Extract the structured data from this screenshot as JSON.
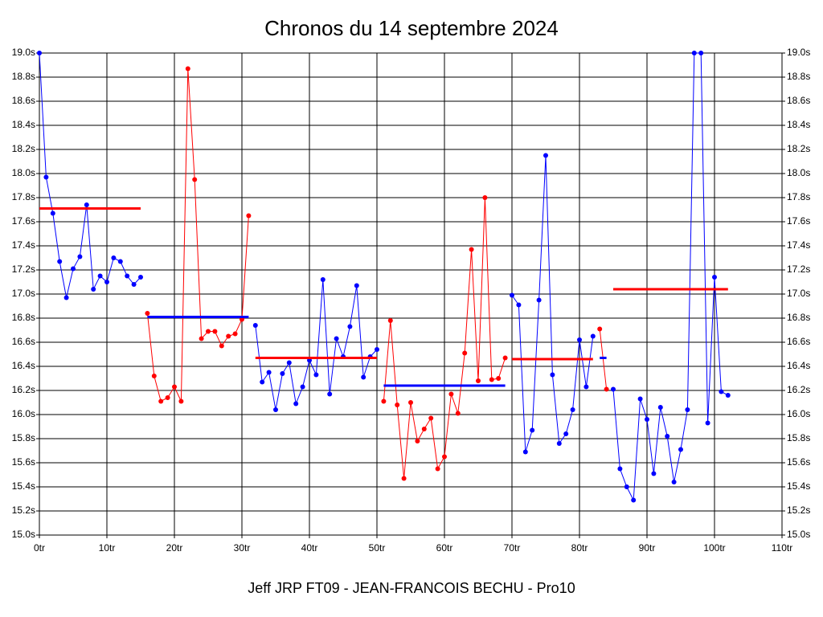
{
  "chart_data": {
    "type": "line",
    "title": "Chronos du 14 septembre 2024",
    "xlabel": "Jeff JRP FT09 - JEAN-FRANCOIS BECHU - Pro10",
    "xlim": [
      0,
      110
    ],
    "xticks": [
      {
        "value": 0,
        "label": "0tr"
      },
      {
        "value": 10,
        "label": "10tr"
      },
      {
        "value": 20,
        "label": "20tr"
      },
      {
        "value": 30,
        "label": "30tr"
      },
      {
        "value": 40,
        "label": "40tr"
      },
      {
        "value": 50,
        "label": "50tr"
      },
      {
        "value": 60,
        "label": "60tr"
      },
      {
        "value": 70,
        "label": "70tr"
      },
      {
        "value": 80,
        "label": "80tr"
      },
      {
        "value": 90,
        "label": "90tr"
      },
      {
        "value": 100,
        "label": "100tr"
      },
      {
        "value": 110,
        "label": "110tr"
      }
    ],
    "ylim": [
      15.0,
      19.0
    ],
    "yticks": [
      {
        "value": 15.0,
        "label": "15.0s"
      },
      {
        "value": 15.2,
        "label": "15.2s"
      },
      {
        "value": 15.4,
        "label": "15.4s"
      },
      {
        "value": 15.6,
        "label": "15.6s"
      },
      {
        "value": 15.8,
        "label": "15.8s"
      },
      {
        "value": 16.0,
        "label": "16.0s"
      },
      {
        "value": 16.2,
        "label": "16.2s"
      },
      {
        "value": 16.4,
        "label": "16.4s"
      },
      {
        "value": 16.6,
        "label": "16.6s"
      },
      {
        "value": 16.8,
        "label": "16.8s"
      },
      {
        "value": 17.0,
        "label": "17.0s"
      },
      {
        "value": 17.2,
        "label": "17.2s"
      },
      {
        "value": 17.4,
        "label": "17.4s"
      },
      {
        "value": 17.6,
        "label": "17.6s"
      },
      {
        "value": 17.8,
        "label": "17.8s"
      },
      {
        "value": 18.0,
        "label": "18.0s"
      },
      {
        "value": 18.2,
        "label": "18.2s"
      },
      {
        "value": 18.4,
        "label": "18.4s"
      },
      {
        "value": 18.6,
        "label": "18.6s"
      },
      {
        "value": 18.8,
        "label": "18.8s"
      },
      {
        "value": 19.0,
        "label": "19.0s"
      }
    ],
    "grid": true,
    "series": [
      {
        "color": "#0000ff",
        "mean": 17.71,
        "mean_color": "#ff0000",
        "x": [
          0,
          1,
          2,
          3,
          4,
          5,
          6,
          7,
          8,
          9,
          10,
          11,
          12,
          13,
          14,
          15
        ],
        "values": [
          19.0,
          17.97,
          17.67,
          17.27,
          16.97,
          17.21,
          17.31,
          17.74,
          17.04,
          17.15,
          17.1,
          17.3,
          17.27,
          17.15,
          17.08,
          17.14
        ]
      },
      {
        "color": "#ff0000",
        "mean": 16.81,
        "mean_color": "#0000ff",
        "x": [
          16,
          17,
          18,
          19,
          20,
          21,
          22,
          23,
          24,
          25,
          26,
          27,
          28,
          29,
          30,
          31
        ],
        "values": [
          16.84,
          16.32,
          16.11,
          16.14,
          16.23,
          16.11,
          18.87,
          17.95,
          16.63,
          16.69,
          16.69,
          16.57,
          16.65,
          16.67,
          16.79,
          17.65
        ]
      },
      {
        "color": "#0000ff",
        "mean": 16.47,
        "mean_color": "#ff0000",
        "x": [
          32,
          33,
          34,
          35,
          36,
          37,
          38,
          39,
          40,
          41,
          42,
          43,
          44,
          45,
          46,
          47,
          48,
          49,
          50
        ],
        "values": [
          16.74,
          16.27,
          16.35,
          16.04,
          16.34,
          16.43,
          16.09,
          16.23,
          16.45,
          16.33,
          17.12,
          16.17,
          16.63,
          16.48,
          16.73,
          17.07,
          16.31,
          16.48,
          16.54
        ]
      },
      {
        "color": "#ff0000",
        "mean": 16.24,
        "mean_color": "#0000ff",
        "x": [
          51,
          52,
          53,
          54,
          55,
          56,
          57,
          58,
          59,
          60,
          61,
          62,
          63,
          64,
          65,
          66,
          67,
          68,
          69
        ],
        "values": [
          16.11,
          16.78,
          16.08,
          15.47,
          16.1,
          15.78,
          15.88,
          15.97,
          15.55,
          15.65,
          16.17,
          16.01,
          16.51,
          17.37,
          16.28,
          17.8,
          16.29,
          16.3,
          16.47
        ]
      },
      {
        "color": "#0000ff",
        "mean": 16.46,
        "mean_color": "#ff0000",
        "x": [
          70,
          71,
          72,
          73,
          74,
          75,
          76,
          77,
          78,
          79,
          80,
          81,
          82
        ],
        "values": [
          16.99,
          16.91,
          15.69,
          15.87,
          16.95,
          18.15,
          16.33,
          15.76,
          15.84,
          16.04,
          16.62,
          16.23,
          16.65
        ]
      },
      {
        "color": "#ff0000",
        "mean": 16.47,
        "mean_color": "#0000ff",
        "x": [
          83,
          84
        ],
        "values": [
          16.71,
          16.21
        ]
      },
      {
        "color": "#0000ff",
        "mean": 17.04,
        "mean_color": "#ff0000",
        "x": [
          85,
          86,
          87,
          88,
          89,
          90,
          91,
          92,
          93,
          94,
          95,
          96,
          97,
          98,
          99,
          100,
          101,
          102
        ],
        "values": [
          16.21,
          15.55,
          15.4,
          15.29,
          16.13,
          15.96,
          15.51,
          16.06,
          15.82,
          15.44,
          15.71,
          16.04,
          19.0,
          19.0,
          15.93,
          17.14,
          16.19,
          16.16
        ]
      }
    ]
  }
}
